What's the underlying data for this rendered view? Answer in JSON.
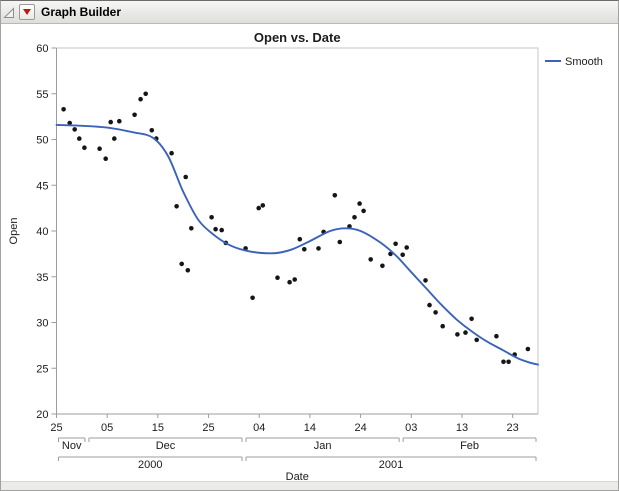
{
  "header": {
    "title": "Graph Builder",
    "disclosure_icon": "open-outline-triangle",
    "menu_icon": "red-triangle-menu"
  },
  "colors": {
    "smooth_line": "#3B63B8",
    "point": "#151515",
    "axis_line": "#9d9d9b",
    "plot_border": "#c6c6c4",
    "tick": "#9d9d9b",
    "label": "#1c1c1c",
    "title": "#000000"
  },
  "chart_data": {
    "type": "scatter",
    "title": "Open vs. Date",
    "xlabel": "Date",
    "ylabel": "Open",
    "ylim": [
      20,
      60
    ],
    "y_ticks": [
      60,
      55,
      50,
      45,
      40,
      35,
      30,
      25,
      20
    ],
    "x_day_span": [
      0,
      95
    ],
    "x_start_date": "2000-11-25",
    "x_ticks": [
      {
        "d": 0,
        "label": "25"
      },
      {
        "d": 10,
        "label": "05"
      },
      {
        "d": 20,
        "label": "15"
      },
      {
        "d": 30,
        "label": "25"
      },
      {
        "d": 40,
        "label": "04"
      },
      {
        "d": 50,
        "label": "14"
      },
      {
        "d": 60,
        "label": "24"
      },
      {
        "d": 70,
        "label": "03"
      },
      {
        "d": 80,
        "label": "13"
      },
      {
        "d": 90,
        "label": "23"
      }
    ],
    "month_spans": [
      {
        "label": "Nov",
        "from": 0,
        "to": 6
      },
      {
        "label": "Dec",
        "from": 6,
        "to": 37
      },
      {
        "label": "Jan",
        "from": 37,
        "to": 68
      },
      {
        "label": "Feb",
        "from": 68,
        "to": 95
      }
    ],
    "year_spans": [
      {
        "label": "2000",
        "from": 0,
        "to": 37
      },
      {
        "label": "2001",
        "from": 37,
        "to": 95
      }
    ],
    "legend": [
      {
        "label": "Smooth",
        "color": "#3B63B8",
        "type": "line"
      }
    ],
    "grid": false,
    "points": [
      [
        1.4,
        53.3
      ],
      [
        2.6,
        51.8
      ],
      [
        3.6,
        51.1
      ],
      [
        4.5,
        50.1
      ],
      [
        5.5,
        49.1
      ],
      [
        8.5,
        49.0
      ],
      [
        9.7,
        47.9
      ],
      [
        10.7,
        51.9
      ],
      [
        11.4,
        50.1
      ],
      [
        12.4,
        52.0
      ],
      [
        15.4,
        52.7
      ],
      [
        16.6,
        54.4
      ],
      [
        17.6,
        55.0
      ],
      [
        18.8,
        51.0
      ],
      [
        19.7,
        50.1
      ],
      [
        22.7,
        48.5
      ],
      [
        23.7,
        42.7
      ],
      [
        24.7,
        36.4
      ],
      [
        25.5,
        45.9
      ],
      [
        25.9,
        35.7
      ],
      [
        26.6,
        40.3
      ],
      [
        30.6,
        41.5
      ],
      [
        31.4,
        40.2
      ],
      [
        32.6,
        40.1
      ],
      [
        33.4,
        38.7
      ],
      [
        37.3,
        38.1
      ],
      [
        38.7,
        32.7
      ],
      [
        39.9,
        42.5
      ],
      [
        40.7,
        42.8
      ],
      [
        43.6,
        34.9
      ],
      [
        46.0,
        34.4
      ],
      [
        47.0,
        34.7
      ],
      [
        48.0,
        39.1
      ],
      [
        48.9,
        38.0
      ],
      [
        51.7,
        38.1
      ],
      [
        52.7,
        39.9
      ],
      [
        54.9,
        43.9
      ],
      [
        55.9,
        38.8
      ],
      [
        57.8,
        40.5
      ],
      [
        58.8,
        41.5
      ],
      [
        59.8,
        43.0
      ],
      [
        60.6,
        42.2
      ],
      [
        62.0,
        36.9
      ],
      [
        64.3,
        36.2
      ],
      [
        65.9,
        37.5
      ],
      [
        66.9,
        38.6
      ],
      [
        68.3,
        37.4
      ],
      [
        69.1,
        38.2
      ],
      [
        72.8,
        34.6
      ],
      [
        73.6,
        31.9
      ],
      [
        74.8,
        31.1
      ],
      [
        76.2,
        29.6
      ],
      [
        79.1,
        28.7
      ],
      [
        80.7,
        28.9
      ],
      [
        81.9,
        30.4
      ],
      [
        82.9,
        28.1
      ],
      [
        86.8,
        28.5
      ],
      [
        88.2,
        25.7
      ],
      [
        89.2,
        25.7
      ],
      [
        90.4,
        26.5
      ],
      [
        93.0,
        27.1
      ]
    ],
    "smooth_knots": [
      [
        0,
        51.6
      ],
      [
        5,
        51.5
      ],
      [
        10,
        51.3
      ],
      [
        15,
        50.8
      ],
      [
        19,
        50.2
      ],
      [
        22,
        48.2
      ],
      [
        25,
        44.3
      ],
      [
        28,
        41.2
      ],
      [
        31,
        39.6
      ],
      [
        34,
        38.5
      ],
      [
        37,
        37.9
      ],
      [
        40.5,
        37.6
      ],
      [
        43.5,
        37.6
      ],
      [
        46.5,
        38.0
      ],
      [
        50,
        38.9
      ],
      [
        54,
        40.0
      ],
      [
        57,
        40.3
      ],
      [
        60,
        40.0
      ],
      [
        64,
        38.7
      ],
      [
        67,
        37.3
      ],
      [
        70,
        35.5
      ],
      [
        73,
        33.7
      ],
      [
        76,
        31.9
      ],
      [
        79,
        30.3
      ],
      [
        82,
        29.0
      ],
      [
        85,
        27.9
      ],
      [
        88,
        27.0
      ],
      [
        91,
        26.1
      ],
      [
        93.5,
        25.6
      ],
      [
        95,
        25.4
      ]
    ]
  }
}
